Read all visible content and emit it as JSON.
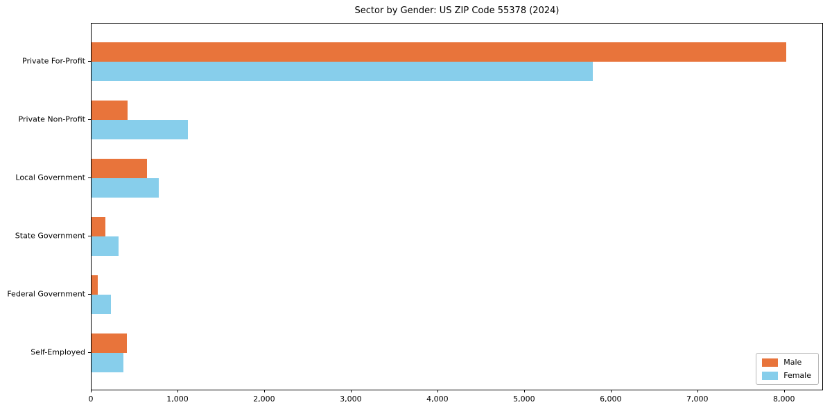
{
  "chart_data": {
    "type": "bar",
    "orientation": "horizontal",
    "title": "Sector by Gender: US ZIP Code 55378 (2024)",
    "categories": [
      "Private For-Profit",
      "Private Non-Profit",
      "Local Government",
      "State Government",
      "Federal Government",
      "Self-Employed"
    ],
    "series": [
      {
        "name": "Male",
        "color": "#e8743b",
        "values": [
          8030,
          415,
          640,
          160,
          75,
          405
        ]
      },
      {
        "name": "Female",
        "color": "#87ceeb",
        "values": [
          5800,
          1115,
          775,
          315,
          225,
          370
        ]
      }
    ],
    "xlim": [
      0,
      8450
    ],
    "xticks": [
      0,
      1000,
      2000,
      3000,
      4000,
      5000,
      6000,
      7000,
      8000
    ],
    "xtick_labels": [
      "0",
      "1,000",
      "2,000",
      "3,000",
      "4,000",
      "5,000",
      "6,000",
      "7,000",
      "8,000"
    ],
    "ylabel": "",
    "xlabel": "",
    "grid": false,
    "legend_position": "lower right",
    "background_color": "#ffffff",
    "spine_color": "#000000"
  }
}
